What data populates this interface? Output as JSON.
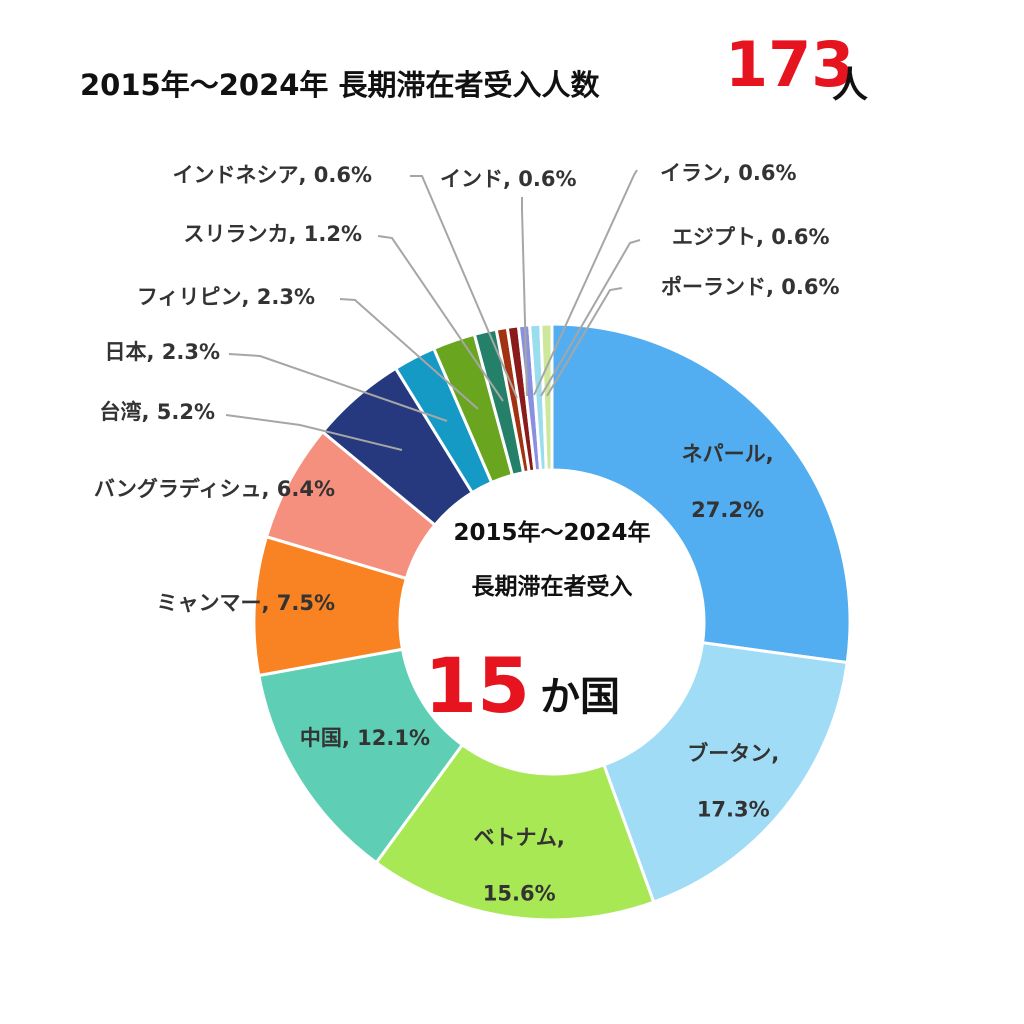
{
  "title": {
    "main": "2015年～2024年 長期滞在者受入人数",
    "count": "173",
    "unit": "人"
  },
  "center": {
    "line1": "2015年～2024年",
    "line2": "長期滞在者受入",
    "count": "15",
    "unit": "か国"
  },
  "chart_data": {
    "type": "pie",
    "categories": [
      "ネパール",
      "ブータン",
      "ベトナム",
      "中国",
      "ミャンマー",
      "バングラディシュ",
      "台湾",
      "日本",
      "フィリピン",
      "スリランカ",
      "インドネシア",
      "インド",
      "イラン",
      "エジプト",
      "ポーランド"
    ],
    "values": [
      27.2,
      17.3,
      15.6,
      12.1,
      7.5,
      6.4,
      5.2,
      2.3,
      2.3,
      1.2,
      0.6,
      0.6,
      0.6,
      0.6,
      0.6
    ],
    "labels": [
      "ネパール,",
      "ブータン,",
      "ベトナム,",
      "中国, 12.1%",
      "ミャンマー, 7.5%",
      "バングラディシュ, 6.4%",
      "台湾, 5.2%",
      "日本, 2.3%",
      "フィリピン, 2.3%",
      "スリランカ, 1.2%",
      "インドネシア, 0.6%",
      "インド, 0.6%",
      "イラン, 0.6%",
      "エジプト, 0.6%",
      "ポーランド, 0.6%"
    ],
    "value_labels": [
      "27.2%",
      "17.3%",
      "15.6%",
      "",
      "",
      "",
      "",
      "",
      "",
      "",
      "",
      "",
      "",
      "",
      ""
    ],
    "colors": [
      "#52aef0",
      "#a0dcf6",
      "#a8e855",
      "#5ecfb5",
      "#f98322",
      "#f5907f",
      "#26397e",
      "#1599c5",
      "#6aa51f",
      "#25806a",
      "#a33210",
      "#8b1a1a",
      "#8a90e0",
      "#99ddee",
      "#cde89a"
    ],
    "donut": true
  }
}
